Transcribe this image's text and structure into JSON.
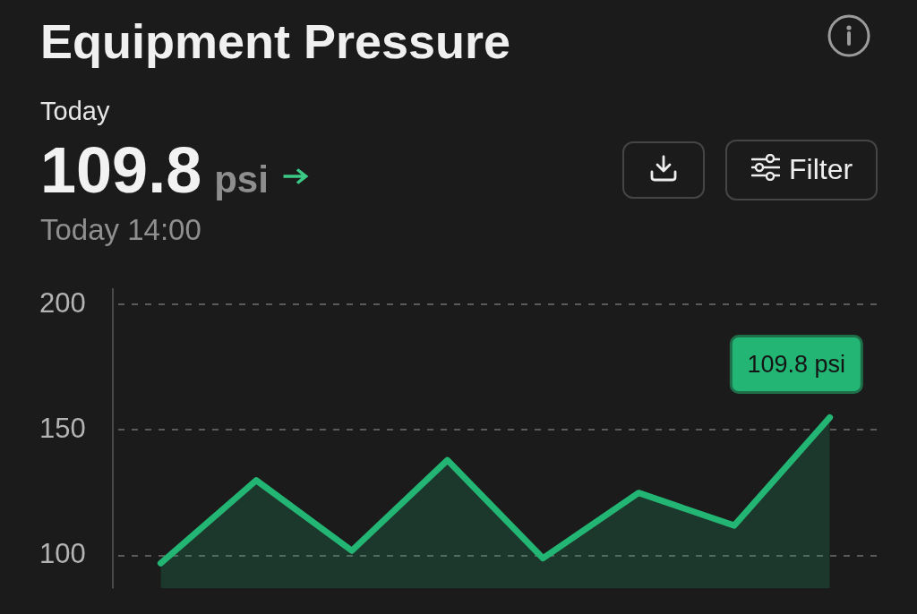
{
  "chart_data": {
    "type": "area",
    "title": "Equipment Pressure",
    "subtitle": "Today",
    "categories": [
      null,
      null,
      null,
      null,
      null,
      null,
      null,
      null
    ],
    "values": [
      97,
      130,
      102,
      138,
      99,
      125,
      112,
      155
    ],
    "color": "#23b574",
    "ylim": [
      87,
      200
    ],
    "yticks": [
      100,
      150,
      200
    ],
    "grid": "y",
    "tick_labels": "y",
    "annotations": [
      "109.8",
      "psi",
      "Today 14:00",
      "Filter",
      "109.8 psi"
    ]
  }
}
